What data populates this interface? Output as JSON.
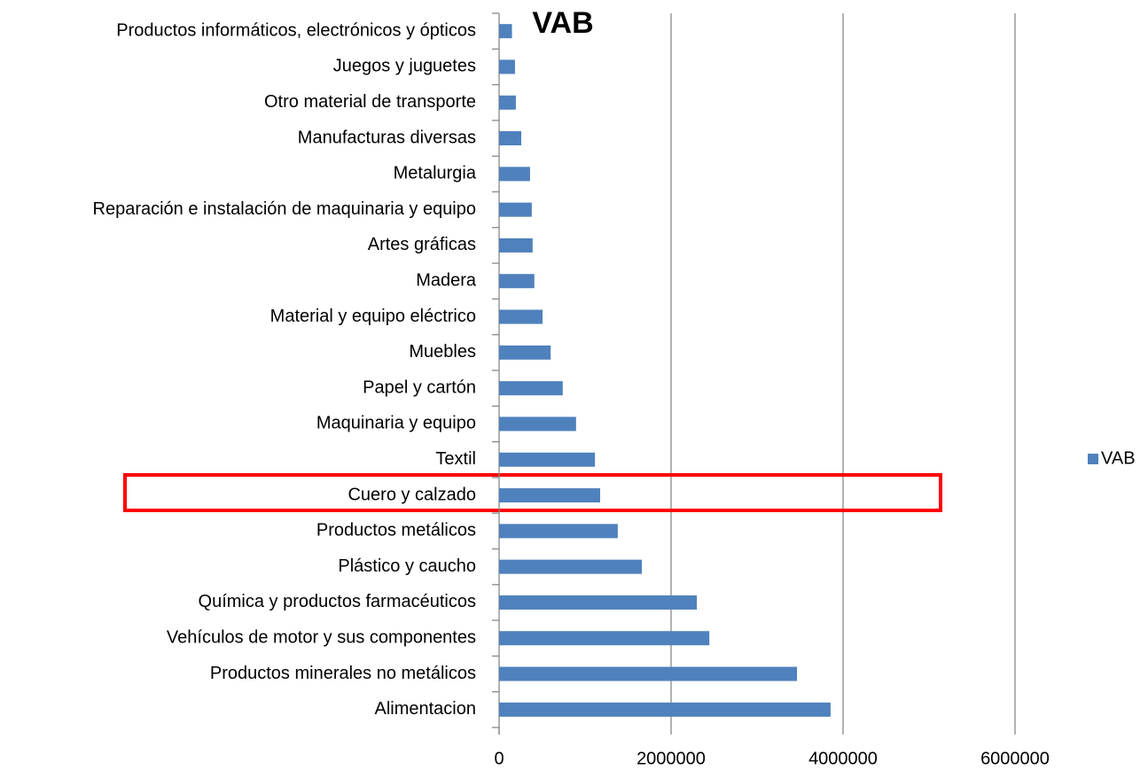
{
  "chart_data": {
    "type": "bar",
    "orientation": "horizontal",
    "title": "VAB",
    "categories": [
      "Productos informáticos, electrónicos y ópticos",
      "Juegos y juguetes",
      "Otro material de transporte",
      "Manufacturas diversas",
      "Metalurgia",
      "Reparación e instalación de maquinaria y equipo",
      "Artes gráficas",
      "Madera",
      "Material y equipo eléctrico",
      "Muebles",
      "Papel y cartón",
      "Maquinaria y equipo",
      "Textil",
      "Cuero y calzado",
      "Productos metálicos",
      "Plástico y caucho",
      "Química y productos farmacéuticos",
      "Vehículos de motor y sus componentes",
      "Productos minerales no metálicos",
      "Alimentacion"
    ],
    "series": [
      {
        "name": "VAB",
        "color": "#4f81bd",
        "values": [
          150000,
          185000,
          195000,
          258000,
          360000,
          380000,
          390000,
          410000,
          505000,
          600000,
          740000,
          895000,
          1115000,
          1175000,
          1380000,
          1660000,
          2300000,
          2445000,
          3465000,
          3855000
        ]
      }
    ],
    "xlim": [
      0,
      6000000
    ],
    "xticks": [
      0,
      2000000,
      4000000,
      6000000
    ],
    "grid": true,
    "legend": "right"
  }
}
